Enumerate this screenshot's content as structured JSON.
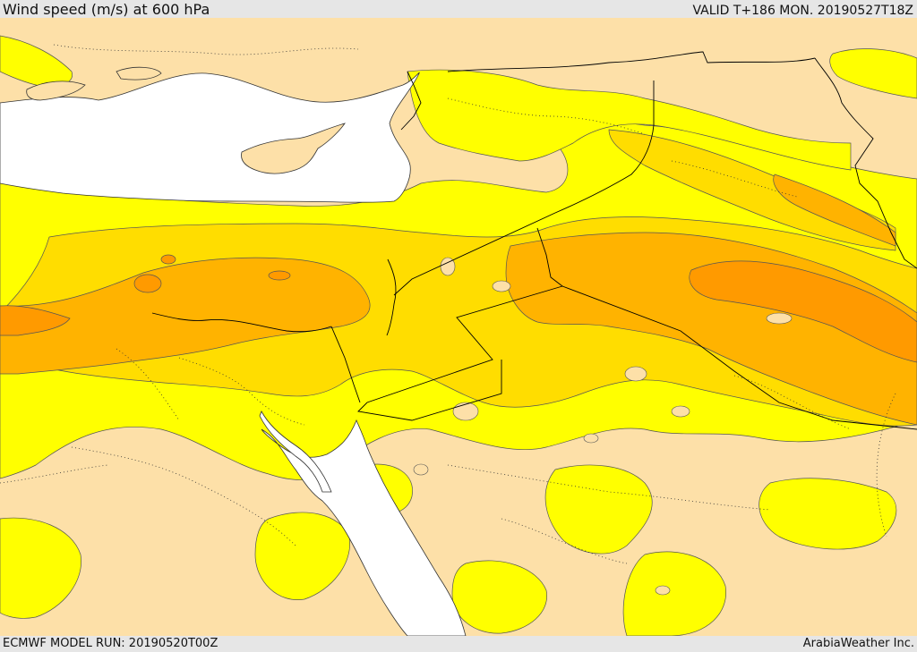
{
  "header": {
    "title": "Wind speed (m/s) at 600 hPa",
    "valid": "VALID T+186 MON. 20190527T18Z"
  },
  "footer": {
    "model_run": "ECMWF MODEL RUN: 20190520T00Z",
    "credit": "ArabiaWeather Inc."
  },
  "map": {
    "field": "Wind speed",
    "colors": {
      "sea": "#ffffff",
      "calm": "#fde0a8",
      "band1": "#ffff00",
      "band2": "#ffdd00",
      "band3": "#ffb300",
      "band4": "#ff9a00",
      "contour": "#333333",
      "border": "#000000"
    }
  }
}
